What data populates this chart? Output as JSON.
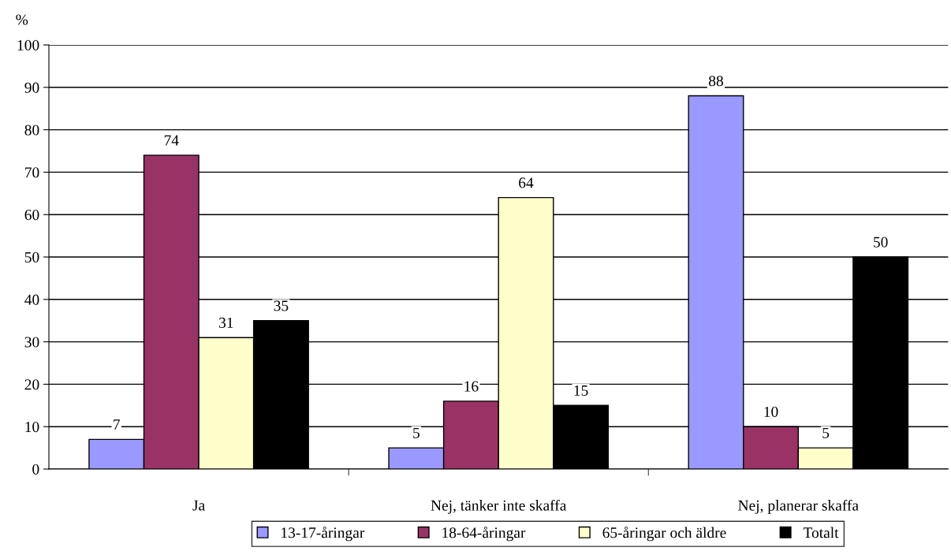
{
  "chart_data": {
    "type": "bar",
    "ylabel": "%",
    "categories": [
      "Ja",
      "Nej, tänker inte skaffa",
      "Nej, planerar skaffa"
    ],
    "series": [
      {
        "name": "13-17-åringar",
        "color": "#9999ff",
        "values": [
          7,
          5,
          88
        ]
      },
      {
        "name": "18-64-åringar",
        "color": "#993366",
        "values": [
          74,
          16,
          10
        ]
      },
      {
        "name": "65-åringar och äldre",
        "color": "#ffffcc",
        "values": [
          31,
          64,
          5
        ]
      },
      {
        "name": "Totalt",
        "color": "#000000",
        "values": [
          35,
          15,
          50
        ]
      }
    ],
    "ylim": [
      0,
      100
    ],
    "yticks": [
      0,
      10,
      20,
      30,
      40,
      50,
      60,
      70,
      80,
      90,
      100
    ],
    "grid": "y",
    "legend": "bottom",
    "data_labels": true
  }
}
